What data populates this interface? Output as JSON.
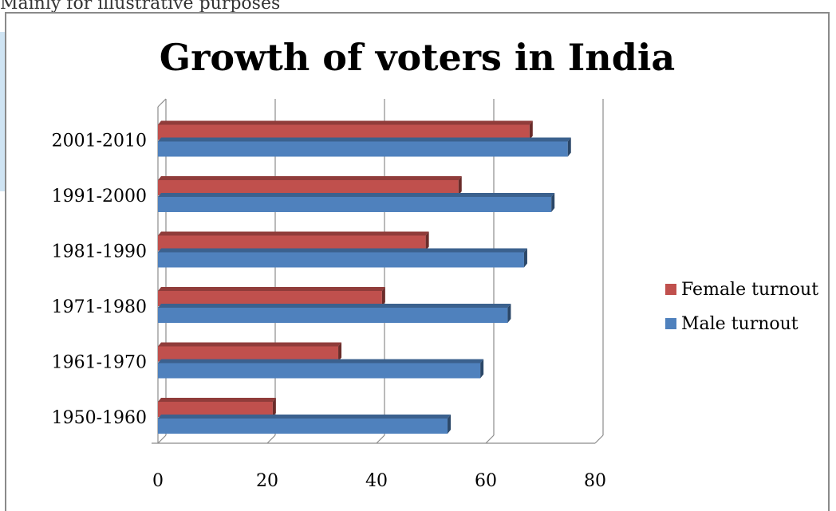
{
  "header_text": "Mainly for illustrative purposes",
  "colors": {
    "female": "#c0504d",
    "male": "#4f81bd",
    "grid": "#8c8c8c"
  },
  "chart_data": {
    "type": "bar",
    "orientation": "horizontal",
    "title": "Growth of voters in India",
    "categories": [
      "1950-1960",
      "1961-1970",
      "1971-1980",
      "1981-1990",
      "1991-2000",
      "2001-2010"
    ],
    "series": [
      {
        "name": "Female turnout",
        "values": [
          21,
          33,
          41,
          49,
          55,
          68
        ]
      },
      {
        "name": "Male turnout",
        "values": [
          53,
          59,
          64,
          67,
          72,
          75
        ]
      }
    ],
    "xlim": [
      0,
      80
    ],
    "xticks": [
      0,
      20,
      40,
      60,
      80
    ],
    "grid": true,
    "legend": "right"
  }
}
